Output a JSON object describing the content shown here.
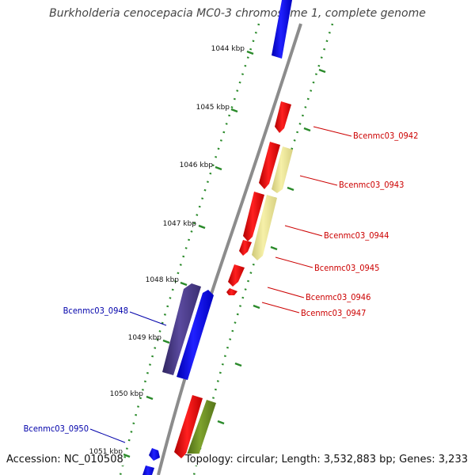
{
  "map": {
    "title": "Burkholderia cenocepacia MC0-3 chromosome 1, complete genome",
    "accession_text": "Accession: NC_010508",
    "summary_text": "Topology: circular; Length: 3,532,883 bp; Genes: 3,233"
  },
  "colors": {
    "backbone": "#8c8c8c",
    "dotted_track": "#2a8a2a",
    "forward_cds": "#ff0000",
    "reverse_cds": "#0000ff",
    "reverse_cds_dark": "#4b3c8c",
    "forward_cds_pale": "#eee89a",
    "forward_cds_olive": "#6b8e23",
    "forward_label": "#cc0000",
    "reverse_label": "#0000aa"
  },
  "ruler_ticks": [
    {
      "label": "1044 kbp"
    },
    {
      "label": "1045 kbp"
    },
    {
      "label": "1046 kbp"
    },
    {
      "label": "1047 kbp"
    },
    {
      "label": "1048 kbp"
    },
    {
      "label": "1049 kbp"
    },
    {
      "label": "1050 kbp"
    },
    {
      "label": "1051 kbp"
    }
  ],
  "gene_labels": [
    {
      "name": "Bcenmc03_0942",
      "strand": "forward"
    },
    {
      "name": "Bcenmc03_0943",
      "strand": "forward"
    },
    {
      "name": "Bcenmc03_0944",
      "strand": "forward"
    },
    {
      "name": "Bcenmc03_0945",
      "strand": "forward"
    },
    {
      "name": "Bcenmc03_0946",
      "strand": "forward"
    },
    {
      "name": "Bcenmc03_0947",
      "strand": "forward"
    },
    {
      "name": "Bcenmc03_0948",
      "strand": "reverse"
    },
    {
      "name": "Bcenmc03_0950",
      "strand": "reverse"
    }
  ]
}
